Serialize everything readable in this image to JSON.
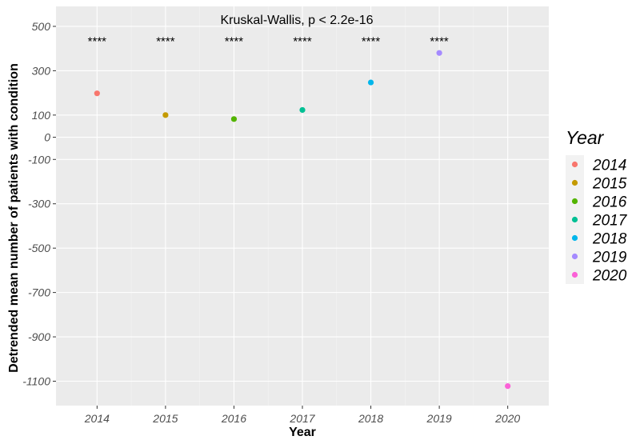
{
  "chart_data": {
    "type": "scatter",
    "title": "",
    "xlabel": "Year",
    "ylabel": "Detrended mean number of patients with condition",
    "annotation": "Kruskal-Wallis, p < 2.2e-16",
    "x_categories": [
      "2014",
      "2015",
      "2016",
      "2017",
      "2018",
      "2019",
      "2020"
    ],
    "y_ticks": [
      500,
      300,
      100,
      0,
      -100,
      -300,
      -500,
      -700,
      -900,
      -1100
    ],
    "y_tick_labels": [
      "500",
      "300",
      "100",
      "0",
      "-100",
      "-300",
      "-500",
      "-700",
      "-900",
      "-1100"
    ],
    "ylim": [
      -1210,
      590
    ],
    "grid": true,
    "legend": {
      "title": "Year",
      "placement": "right",
      "entries": [
        "2014",
        "2015",
        "2016",
        "2017",
        "2018",
        "2019",
        "2020"
      ]
    },
    "series": [
      {
        "name": "2014",
        "x": "2014",
        "y": 198,
        "color": "#F8766D",
        "significance": "****"
      },
      {
        "name": "2015",
        "x": "2015",
        "y": 100,
        "color": "#C49A00",
        "significance": "****"
      },
      {
        "name": "2016",
        "x": "2016",
        "y": 82,
        "color": "#53B400",
        "significance": "****"
      },
      {
        "name": "2017",
        "x": "2017",
        "y": 123,
        "color": "#00C094",
        "significance": "****"
      },
      {
        "name": "2018",
        "x": "2018",
        "y": 247,
        "color": "#00B6EB",
        "significance": "****"
      },
      {
        "name": "2019",
        "x": "2019",
        "y": 380,
        "color": "#A58AFF",
        "significance": "****"
      },
      {
        "name": "2020",
        "x": "2020",
        "y": -1122,
        "color": "#FB61D7",
        "significance": ""
      }
    ]
  }
}
